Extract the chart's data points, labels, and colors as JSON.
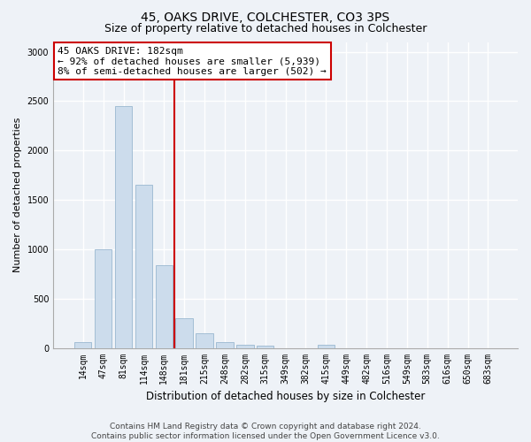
{
  "title1": "45, OAKS DRIVE, COLCHESTER, CO3 3PS",
  "title2": "Size of property relative to detached houses in Colchester",
  "xlabel": "Distribution of detached houses by size in Colchester",
  "ylabel": "Number of detached properties",
  "categories": [
    "14sqm",
    "47sqm",
    "81sqm",
    "114sqm",
    "148sqm",
    "181sqm",
    "215sqm",
    "248sqm",
    "282sqm",
    "315sqm",
    "349sqm",
    "382sqm",
    "415sqm",
    "449sqm",
    "482sqm",
    "516sqm",
    "549sqm",
    "583sqm",
    "616sqm",
    "650sqm",
    "683sqm"
  ],
  "values": [
    55,
    1000,
    2450,
    1650,
    840,
    300,
    150,
    55,
    35,
    20,
    0,
    0,
    30,
    0,
    0,
    0,
    0,
    0,
    0,
    0,
    0
  ],
  "bar_color": "#ccdcec",
  "bar_edge_color": "#9ab8d0",
  "bar_linewidth": 0.6,
  "vline_x_index": 5,
  "vline_color": "#cc0000",
  "annotation_line1": "45 OAKS DRIVE: 182sqm",
  "annotation_line2": "← 92% of detached houses are smaller (5,939)",
  "annotation_line3": "8% of semi-detached houses are larger (502) →",
  "annotation_box_facecolor": "#ffffff",
  "annotation_box_edgecolor": "#cc0000",
  "ylim": [
    0,
    3100
  ],
  "yticks": [
    0,
    500,
    1000,
    1500,
    2000,
    2500,
    3000
  ],
  "bg_color": "#eef2f7",
  "grid_color": "#ffffff",
  "footnote": "Contains HM Land Registry data © Crown copyright and database right 2024.\nContains public sector information licensed under the Open Government Licence v3.0.",
  "title1_fontsize": 10,
  "title2_fontsize": 9,
  "xlabel_fontsize": 8.5,
  "ylabel_fontsize": 8,
  "tick_fontsize": 7,
  "annot_fontsize": 8,
  "footnote_fontsize": 6.5
}
